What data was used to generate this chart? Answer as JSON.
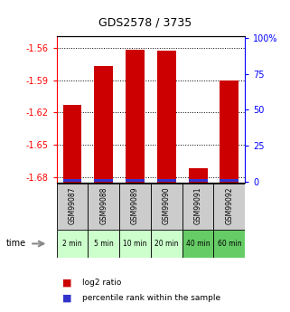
{
  "title": "GDS2578 / 3735",
  "samples": [
    "GSM99087",
    "GSM99088",
    "GSM99089",
    "GSM99090",
    "GSM99091",
    "GSM99092"
  ],
  "time_labels": [
    "2 min",
    "5 min",
    "10 min",
    "20 min",
    "40 min",
    "60 min"
  ],
  "log2_values": [
    -1.613,
    -1.577,
    -1.562,
    -1.563,
    -1.672,
    -1.59
  ],
  "percentile_values": [
    1.5,
    1.5,
    1.5,
    1.5,
    1.5,
    1.5
  ],
  "ylim_left": [
    -1.685,
    -1.549
  ],
  "ylim_right": [
    -0.833,
    101.67
  ],
  "yticks_left": [
    -1.56,
    -1.59,
    -1.62,
    -1.65,
    -1.68
  ],
  "ytick_labels_left": [
    "-1.56",
    "-1.59",
    "-1.62",
    "-1.65",
    "-1.68"
  ],
  "yticks_right": [
    0,
    25,
    50,
    75,
    100
  ],
  "ytick_labels_right": [
    "0",
    "25",
    "50",
    "75",
    "100%"
  ],
  "bar_color_red": "#cc0000",
  "bar_color_blue": "#3333cc",
  "bg_gsm": "#cccccc",
  "time_bg_colors": [
    "#ccffcc",
    "#ccffcc",
    "#ccffcc",
    "#ccffcc",
    "#66cc66",
    "#66cc66"
  ]
}
